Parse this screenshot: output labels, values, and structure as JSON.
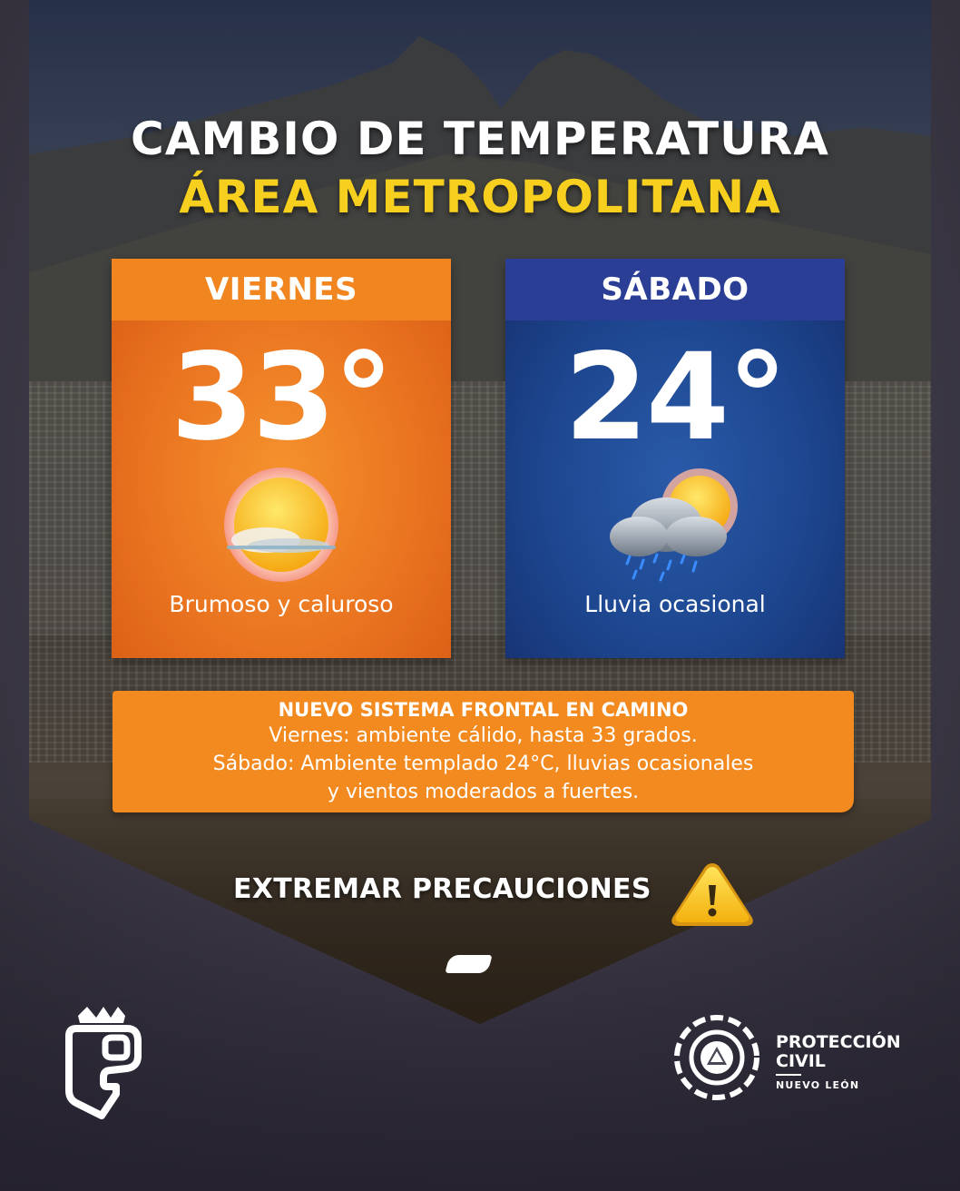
{
  "header": {
    "title_line1": "CAMBIO DE TEMPERATURA",
    "title_line2": "ÁREA METROPOLITANA"
  },
  "forecast": [
    {
      "day": "VIERNES",
      "temperature": "33°",
      "description": "Brumoso y caluroso",
      "icon": "sun-haze-icon",
      "color": "#ea7420"
    },
    {
      "day": "SÁBADO",
      "temperature": "24°",
      "description": "Lluvia ocasional",
      "icon": "rain-cloud-sun-icon",
      "color": "#1d468f"
    }
  ],
  "notice": {
    "title": "NUEVO SISTEMA FRONTAL EN CAMINO",
    "line1": "Viernes: ambiente cálido, hasta 33 grados.",
    "line2": "Sábado: Ambiente templado 24°C, lluvias ocasionales",
    "line3": "y vientos moderados a fuertes.",
    "color": "#f28a1f"
  },
  "precaution": {
    "label": "EXTREMAR PRECAUCIONES",
    "icon": "warning-icon"
  },
  "footer": {
    "left_logo": "crown-shield-logo",
    "right_logo": "proteccion-civil-seal-logo",
    "org_line1": "PROTECCIÓN",
    "org_line2": "CIVIL",
    "org_sub": "NUEVO LEÓN"
  },
  "colors": {
    "title_yellow": "#f7d01f",
    "orange": "#f1851f",
    "blue": "#2a3e96"
  }
}
